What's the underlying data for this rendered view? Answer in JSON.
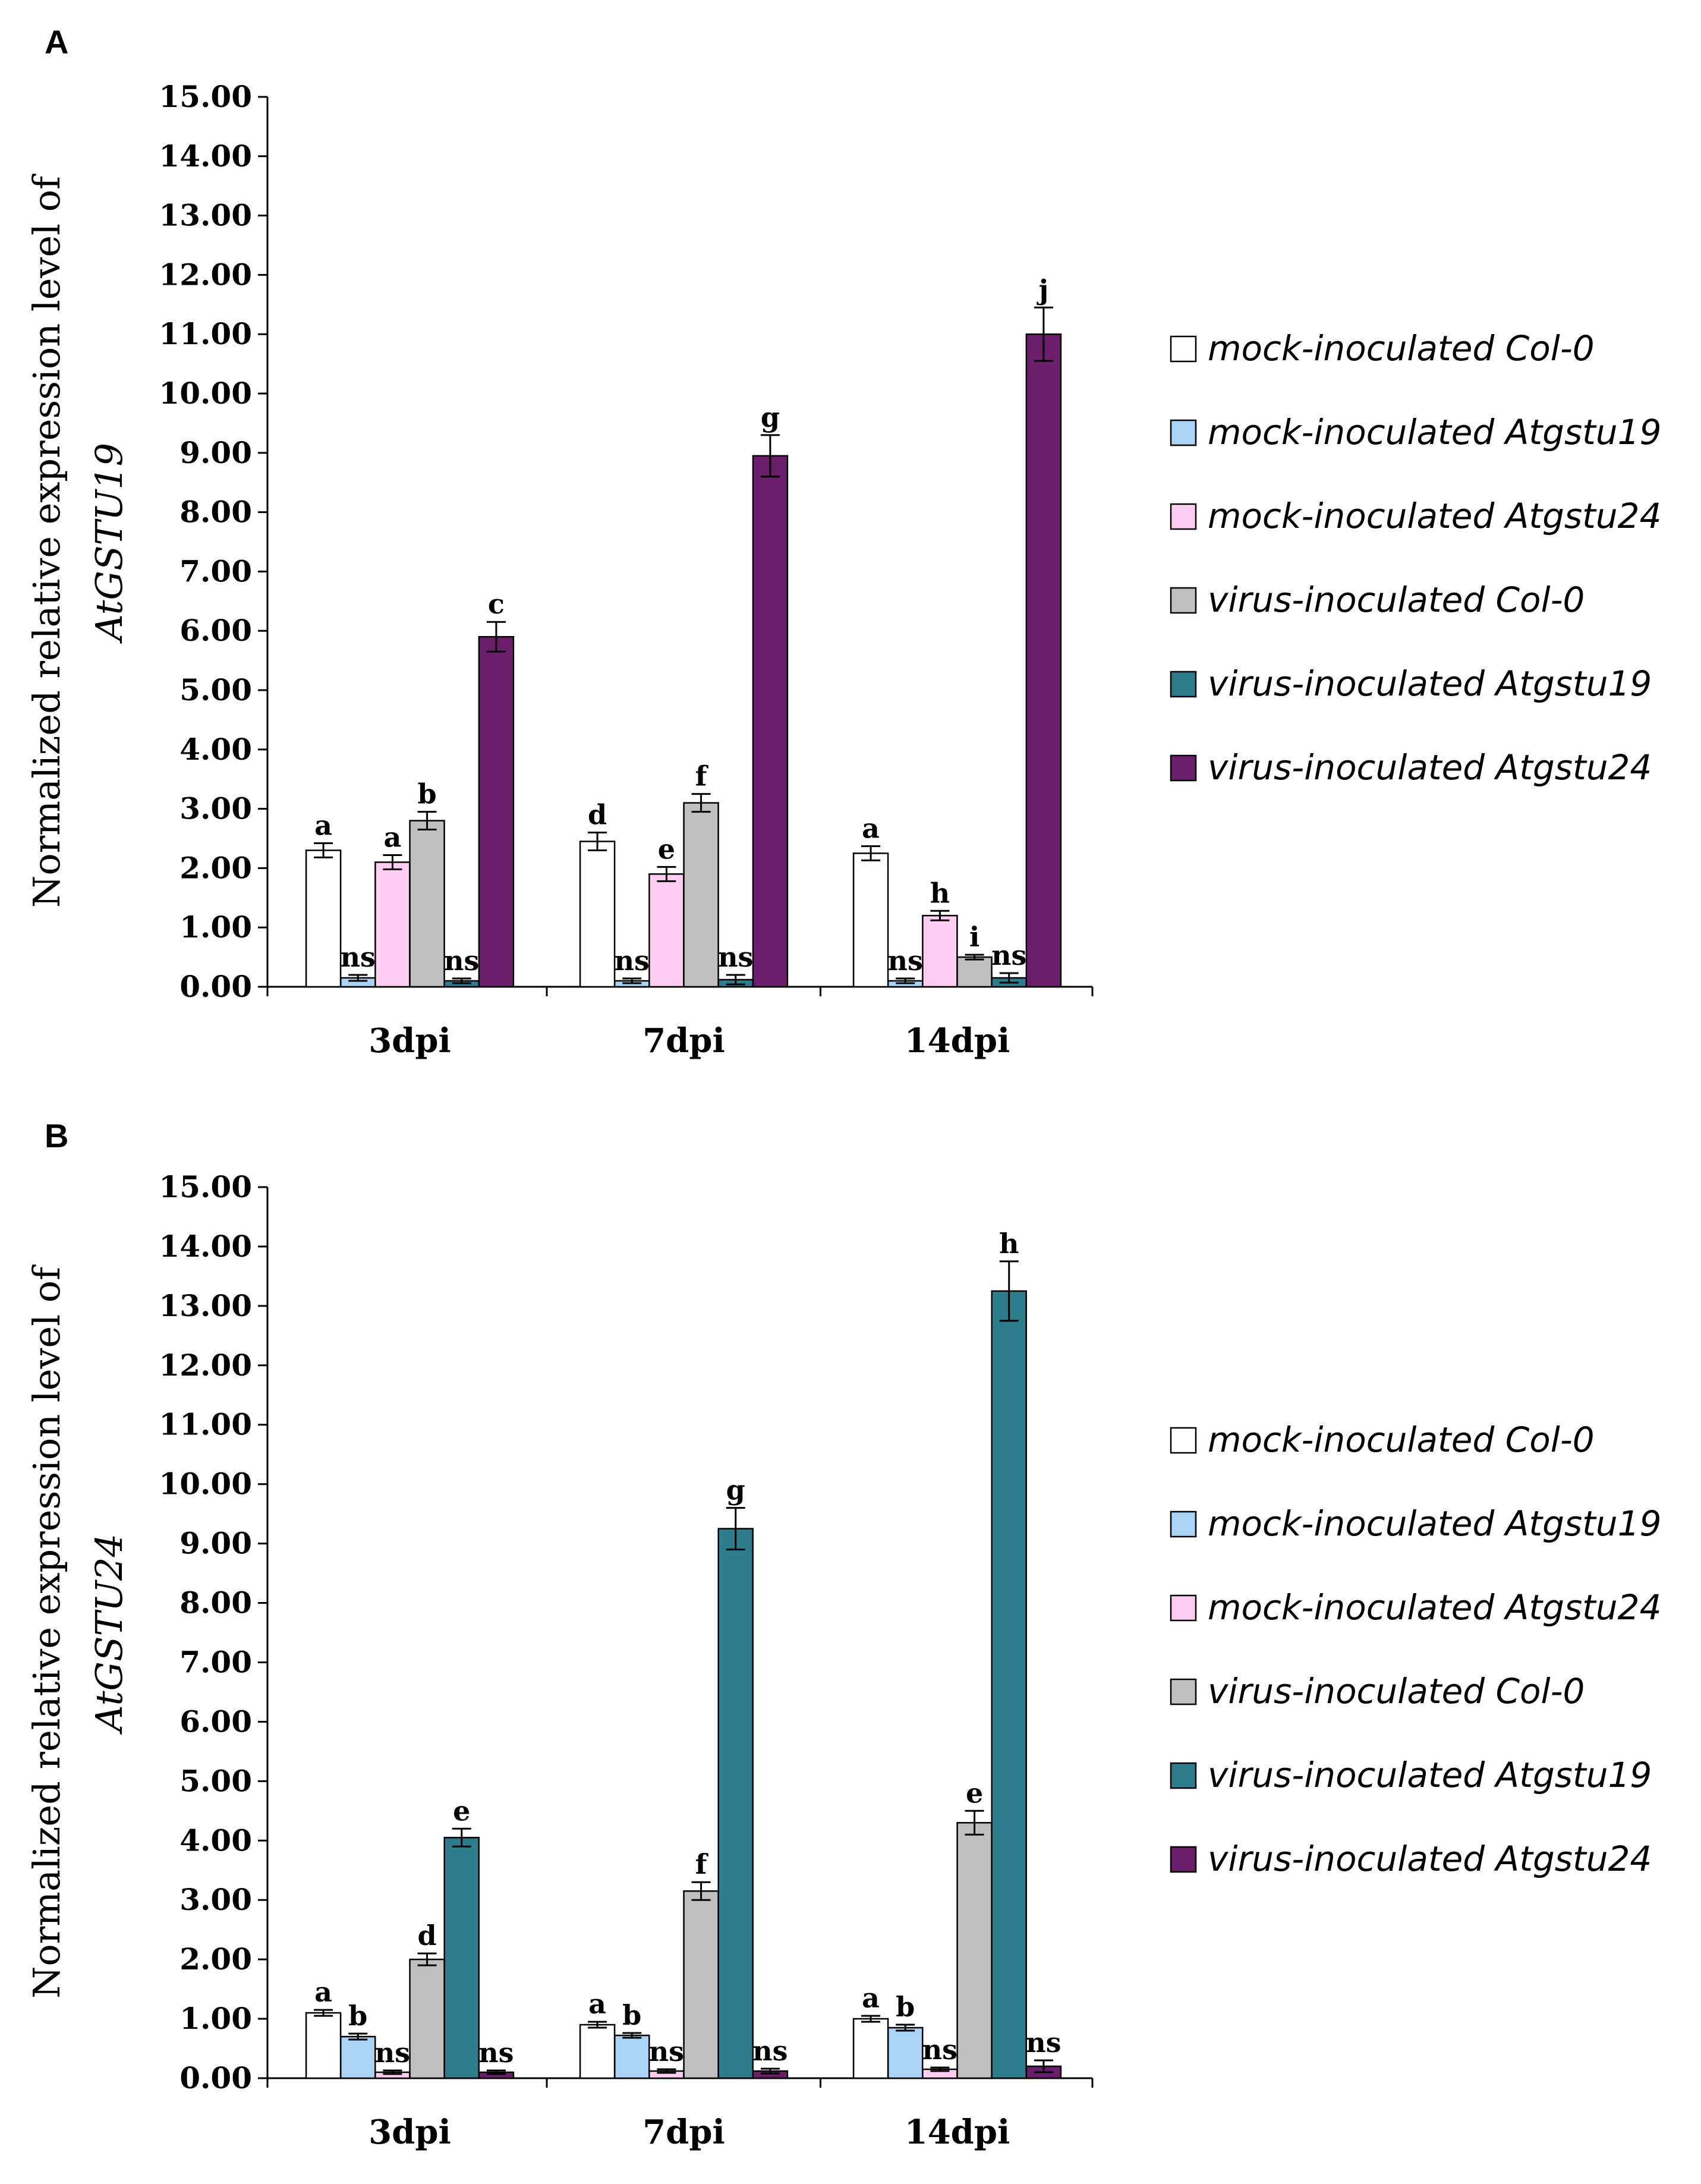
{
  "chart_data": [
    {
      "panel": "A",
      "type": "bar",
      "ylabel_line1": "Normalized relative expression level of",
      "ylabel_line2": "AtGSTU19",
      "ylim": [
        0,
        15
      ],
      "yticks": [
        "0.00",
        "1.00",
        "2.00",
        "3.00",
        "4.00",
        "5.00",
        "6.00",
        "7.00",
        "8.00",
        "9.00",
        "10.00",
        "11.00",
        "12.00",
        "13.00",
        "14.00",
        "15.00"
      ],
      "categories": [
        "3dpi",
        "7dpi",
        "14dpi"
      ],
      "series": [
        {
          "name": "mock-inoculated Col-0",
          "color": "#ffffff",
          "values": [
            2.3,
            2.45,
            2.25
          ],
          "errors": [
            0.12,
            0.15,
            0.12
          ],
          "labels": [
            "a",
            "d",
            "a"
          ]
        },
        {
          "name": "mock-inoculated Atgstu19",
          "color": "#a9d4f5",
          "values": [
            0.15,
            0.1,
            0.1
          ],
          "errors": [
            0.05,
            0.04,
            0.04
          ],
          "labels": [
            "ns",
            "ns",
            "ns"
          ]
        },
        {
          "name": "mock-inoculated Atgstu24",
          "color": "#ffccf2",
          "values": [
            2.1,
            1.9,
            1.2
          ],
          "errors": [
            0.12,
            0.12,
            0.08
          ],
          "labels": [
            "a",
            "e",
            "h"
          ]
        },
        {
          "name": "virus-inoculated Col-0",
          "color": "#bfbfbf",
          "values": [
            2.8,
            3.1,
            0.5
          ],
          "errors": [
            0.15,
            0.15,
            0.04
          ],
          "labels": [
            "b",
            "f",
            "i"
          ]
        },
        {
          "name": "virus-inoculated Atgstu19",
          "color": "#2e7d8c",
          "values": [
            0.1,
            0.12,
            0.15
          ],
          "errors": [
            0.04,
            0.08,
            0.08
          ],
          "labels": [
            "ns",
            "ns",
            "ns"
          ]
        },
        {
          "name": "virus-inoculated Atgstu24",
          "color": "#6b1f6b",
          "values": [
            5.9,
            8.95,
            11.0
          ],
          "errors": [
            0.25,
            0.35,
            0.45
          ],
          "labels": [
            "c",
            "g",
            "j"
          ]
        }
      ]
    },
    {
      "panel": "B",
      "type": "bar",
      "ylabel_line1": "Normalized relative expression level of",
      "ylabel_line2": "AtGSTU24",
      "ylim": [
        0,
        15
      ],
      "yticks": [
        "0.00",
        "1.00",
        "2.00",
        "3.00",
        "4.00",
        "5.00",
        "6.00",
        "7.00",
        "8.00",
        "9.00",
        "10.00",
        "11.00",
        "12.00",
        "13.00",
        "14.00",
        "15.00"
      ],
      "categories": [
        "3dpi",
        "7dpi",
        "14dpi"
      ],
      "series": [
        {
          "name": "mock-inoculated Col-0",
          "color": "#ffffff",
          "values": [
            1.1,
            0.9,
            1.0
          ],
          "errors": [
            0.05,
            0.05,
            0.05
          ],
          "labels": [
            "a",
            "a",
            "a"
          ]
        },
        {
          "name": "mock-inoculated Atgstu19",
          "color": "#a9d4f5",
          "values": [
            0.7,
            0.72,
            0.85
          ],
          "errors": [
            0.05,
            0.04,
            0.05
          ],
          "labels": [
            "b",
            "b",
            "b"
          ]
        },
        {
          "name": "mock-inoculated Atgstu24",
          "color": "#ffccf2",
          "values": [
            0.1,
            0.12,
            0.15
          ],
          "errors": [
            0.03,
            0.03,
            0.03
          ],
          "labels": [
            "ns",
            "ns",
            "ns"
          ]
        },
        {
          "name": "virus-inoculated Col-0",
          "color": "#bfbfbf",
          "values": [
            2.0,
            3.15,
            4.3
          ],
          "errors": [
            0.1,
            0.15,
            0.2
          ],
          "labels": [
            "d",
            "f",
            "e"
          ]
        },
        {
          "name": "virus-inoculated Atgstu19",
          "color": "#2e7d8c",
          "values": [
            4.05,
            9.25,
            13.25
          ],
          "errors": [
            0.15,
            0.35,
            0.5
          ],
          "labels": [
            "e",
            "g",
            "h"
          ]
        },
        {
          "name": "virus-inoculated Atgstu24",
          "color": "#6b1f6b",
          "values": [
            0.1,
            0.12,
            0.2
          ],
          "errors": [
            0.03,
            0.04,
            0.1
          ],
          "labels": [
            "ns",
            "ns",
            "ns"
          ]
        }
      ]
    }
  ]
}
